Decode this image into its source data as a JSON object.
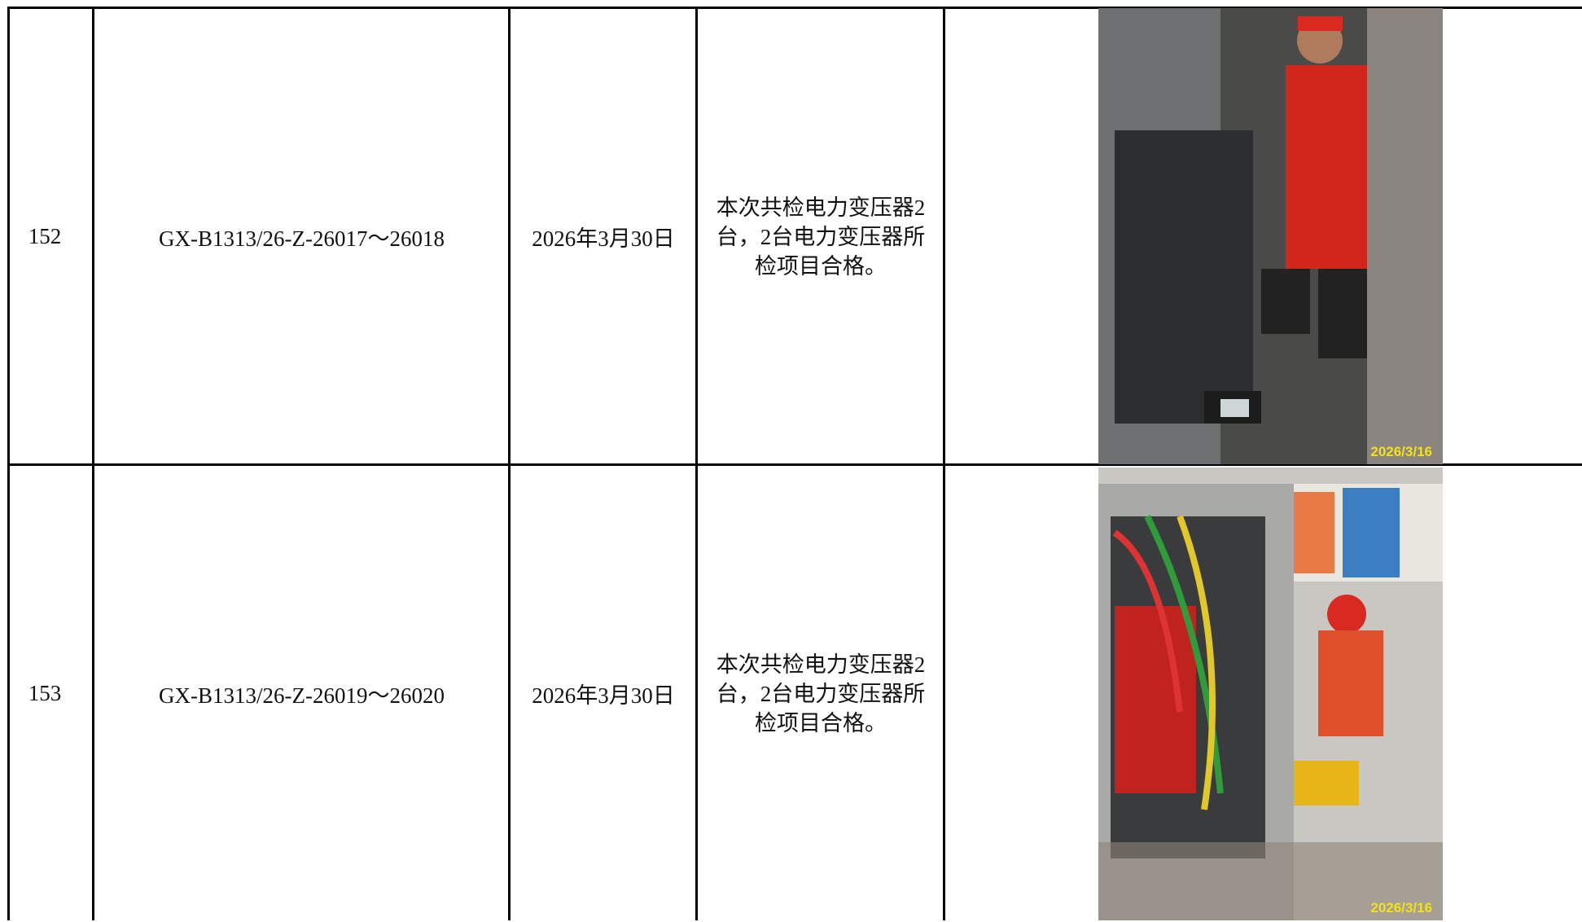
{
  "table": {
    "rows": [
      {
        "no": "152",
        "code": "GX-B1313/26-Z-26017～26018",
        "date": "2026年3月30日",
        "result": "本次共检电力变压器2台，2台电力变压器所检项目合格。",
        "photo_stamp": "2026/3/16"
      },
      {
        "no": "153",
        "code": "GX-B1313/26-Z-26019～26020",
        "date": "2026年3月30日",
        "result": "本次共检电力变压器2台，2台电力变压器所检项目合格。",
        "photo_stamp": "2026/3/16"
      }
    ]
  }
}
